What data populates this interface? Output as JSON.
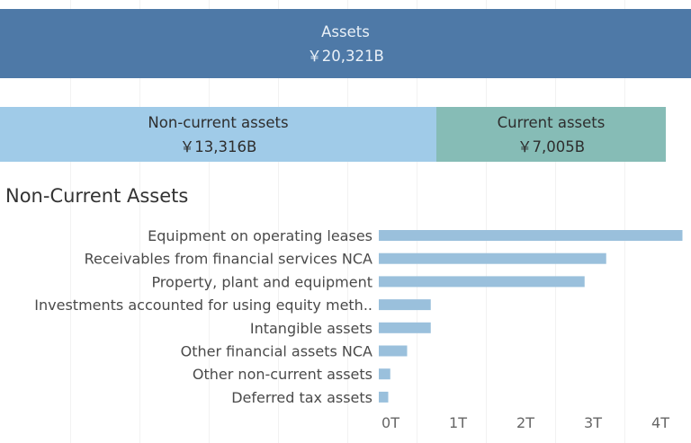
{
  "top": {
    "total": {
      "label": "Assets",
      "value": "￥20,321B"
    },
    "noncurrent": {
      "label": "Non-current assets",
      "value": "￥13,316B",
      "amount": 13316
    },
    "current": {
      "label": "Current assets",
      "value": "￥7,005B",
      "amount": 7005
    },
    "colors": {
      "total": "#4e79a7",
      "noncurrent": "#a0cbe8",
      "current": "#86bcb6"
    }
  },
  "chart_data": {
    "type": "bar",
    "orientation": "horizontal",
    "title": "Non-Current Assets",
    "categories": [
      "Equipment on operating leases",
      "Receivables from financial services NCA",
      "Property, plant and equipment",
      "Investments accounted for using equity meth..",
      "Intangible assets",
      "Other financial assets NCA",
      "Other non-current assets",
      "Deferred tax assets"
    ],
    "values": [
      4.5,
      3.37,
      3.05,
      0.77,
      0.77,
      0.42,
      0.17,
      0.14
    ],
    "xticks": [
      "0T",
      "1T",
      "2T",
      "3T",
      "4T"
    ],
    "xlim": [
      0,
      4.6
    ],
    "bar_color": "#9ac0dc"
  }
}
